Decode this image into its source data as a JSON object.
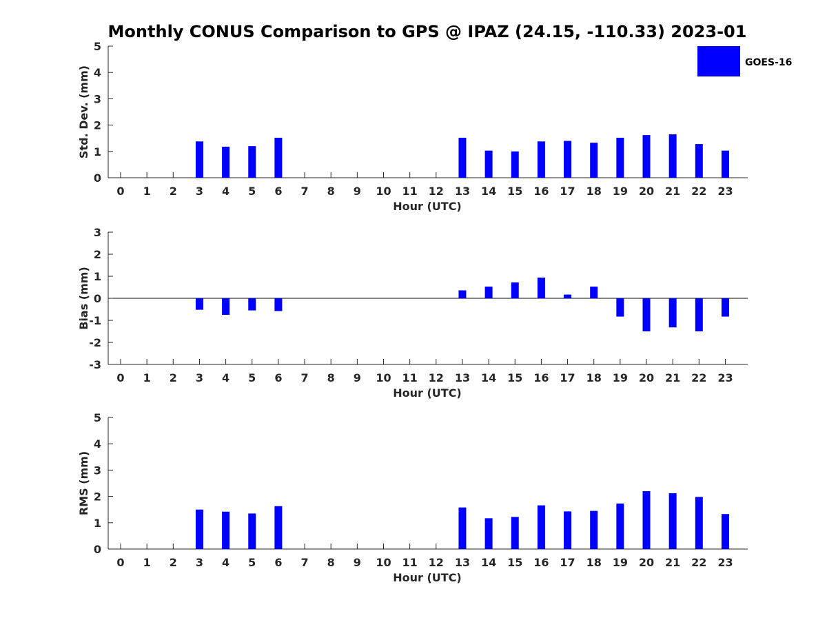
{
  "page_title": "Monthly CONUS Comparison to GPS @ IPAZ (24.15, -110.33) 2023-01",
  "legend": {
    "label": "GOES-16",
    "color": "#0000ff"
  },
  "chart_data": [
    {
      "type": "bar",
      "title": "Monthly CONUS Comparison to GPS @ IPAZ (24.15, -110.33) 2023-01",
      "xlabel": "Hour (UTC)",
      "ylabel": "Std. Dev. (mm)",
      "ylim": [
        0,
        5
      ],
      "yticks": [
        0,
        1,
        2,
        3,
        4,
        5
      ],
      "categories": [
        0,
        1,
        2,
        3,
        4,
        5,
        6,
        7,
        8,
        9,
        10,
        11,
        12,
        13,
        14,
        15,
        16,
        17,
        18,
        19,
        20,
        21,
        22,
        23
      ],
      "series": [
        {
          "name": "GOES-16",
          "color": "#0000ff",
          "values": [
            null,
            null,
            null,
            1.38,
            1.18,
            1.2,
            1.52,
            null,
            null,
            null,
            null,
            null,
            null,
            1.52,
            1.03,
            1.0,
            1.38,
            1.4,
            1.33,
            1.52,
            1.62,
            1.65,
            1.28,
            1.03
          ]
        }
      ],
      "legend": "top-right",
      "grid": false
    },
    {
      "type": "bar",
      "title": "",
      "xlabel": "Hour (UTC)",
      "ylabel": "Bias (mm)",
      "ylim": [
        -3,
        3
      ],
      "yticks": [
        -3,
        -2,
        -1,
        0,
        1,
        2,
        3
      ],
      "categories": [
        0,
        1,
        2,
        3,
        4,
        5,
        6,
        7,
        8,
        9,
        10,
        11,
        12,
        13,
        14,
        15,
        16,
        17,
        18,
        19,
        20,
        21,
        22,
        23
      ],
      "series": [
        {
          "name": "GOES-16",
          "color": "#0000ff",
          "values": [
            null,
            null,
            null,
            -0.52,
            -0.75,
            -0.55,
            -0.58,
            null,
            null,
            null,
            null,
            null,
            null,
            0.36,
            0.53,
            0.72,
            0.94,
            0.17,
            0.53,
            -0.83,
            -1.5,
            -1.32,
            -1.5,
            -0.83
          ]
        }
      ],
      "grid": false
    },
    {
      "type": "bar",
      "title": "",
      "xlabel": "Hour (UTC)",
      "ylabel": "RMS (mm)",
      "ylim": [
        0,
        5
      ],
      "yticks": [
        0,
        1,
        2,
        3,
        4,
        5
      ],
      "categories": [
        0,
        1,
        2,
        3,
        4,
        5,
        6,
        7,
        8,
        9,
        10,
        11,
        12,
        13,
        14,
        15,
        16,
        17,
        18,
        19,
        20,
        21,
        22,
        23
      ],
      "series": [
        {
          "name": "GOES-16",
          "color": "#0000ff",
          "values": [
            null,
            null,
            null,
            1.5,
            1.42,
            1.35,
            1.63,
            null,
            null,
            null,
            null,
            null,
            null,
            1.58,
            1.17,
            1.22,
            1.66,
            1.43,
            1.45,
            1.73,
            2.2,
            2.12,
            1.98,
            1.33
          ]
        }
      ],
      "grid": false
    }
  ]
}
